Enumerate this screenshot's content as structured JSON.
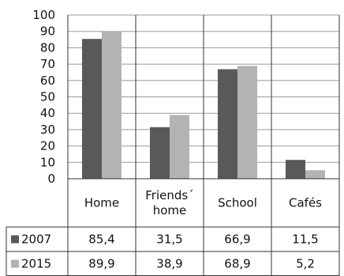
{
  "chart_data": {
    "type": "bar",
    "categories": [
      [
        "Home"
      ],
      [
        "Friends´",
        "home"
      ],
      [
        "School"
      ],
      [
        "Cafés"
      ]
    ],
    "series": [
      {
        "name": "2007",
        "values": [
          85.4,
          31.5,
          66.9,
          11.5
        ],
        "labels": [
          "85,4",
          "31,5",
          "66,9",
          "11,5"
        ],
        "color": "#595959"
      },
      {
        "name": "2015",
        "values": [
          89.9,
          38.9,
          68.9,
          5.2
        ],
        "labels": [
          "89,9",
          "38,9",
          "68,9",
          "5,2"
        ],
        "color": "#b3b3b3"
      }
    ],
    "y_ticks": [
      "0",
      "10",
      "20",
      "30",
      "40",
      "50",
      "60",
      "70",
      "80",
      "90",
      "100"
    ],
    "ylim": [
      0,
      100
    ],
    "grid": true,
    "legend": "data-table"
  }
}
